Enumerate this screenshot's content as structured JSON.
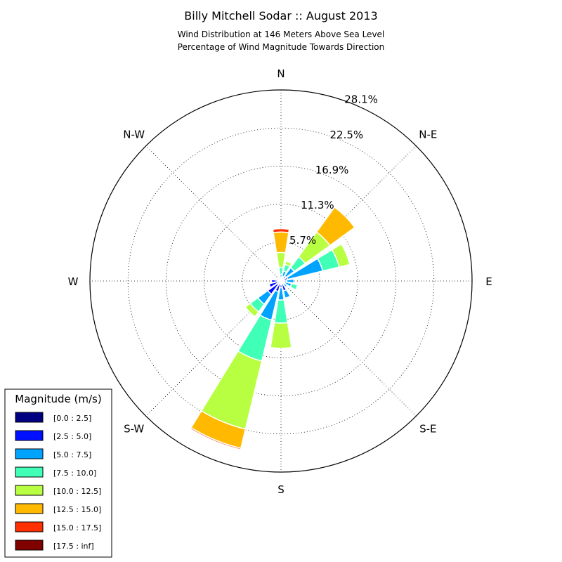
{
  "chart_data": {
    "type": "windrose",
    "title": "Billy Mitchell Sodar :: August 2013",
    "subtitle_lines": [
      "Wind Distribution at 146 Meters Above Sea Level",
      "Percentage of Wind Magnitude Towards Direction"
    ],
    "directions": [
      "N",
      "N-E",
      "E",
      "S-E",
      "S",
      "S-W",
      "W",
      "N-W"
    ],
    "radial_max": 28.1,
    "radial_ticks": [
      "5.7%",
      "11.3%",
      "16.9%",
      "22.5%",
      "28.1%"
    ],
    "radial_tick_values": [
      5.7,
      11.3,
      16.9,
      22.5,
      28.1
    ],
    "legend_title": "Magnitude (m/s)",
    "bins": [
      {
        "label": "[0.0 : 2.5]",
        "color": "#000080"
      },
      {
        "label": "[2.5 : 5.0]",
        "color": "#0010ff"
      },
      {
        "label": "[5.0 : 7.5]",
        "color": "#00a4ff"
      },
      {
        "label": "[7.5 : 10.0]",
        "color": "#40ffb7"
      },
      {
        "label": "[10.0 : 12.5]",
        "color": "#b7ff40"
      },
      {
        "label": "[12.5 : 15.0]",
        "color": "#ffb900"
      },
      {
        "label": "[15.0 : 17.5]",
        "color": "#ff3000"
      },
      {
        "label": "[17.5 : inf]",
        "color": "#800000"
      }
    ],
    "sectors": [
      {
        "direction_deg": 0,
        "values": [
          0.1,
          0.3,
          0.6,
          1.0,
          2.2,
          3.0,
          0.5,
          0.0
        ]
      },
      {
        "direction_deg": 22.5,
        "values": [
          0.2,
          0.5,
          0.8,
          1.0,
          0.5,
          0.0,
          0.0,
          0.0
        ]
      },
      {
        "direction_deg": 45,
        "values": [
          0.3,
          0.6,
          1.5,
          2.0,
          4.5,
          4.5,
          0.0,
          0.0
        ]
      },
      {
        "direction_deg": 67.5,
        "values": [
          0.3,
          0.7,
          5.3,
          2.5,
          1.6,
          0.0,
          0.0,
          0.0
        ]
      },
      {
        "direction_deg": 90,
        "values": [
          0.2,
          0.6,
          1.1,
          0.0,
          0.0,
          0.0,
          0.0,
          0.0
        ]
      },
      {
        "direction_deg": 112.5,
        "values": [
          0.1,
          0.5,
          1.0,
          0.9,
          0.0,
          0.0,
          0.0,
          0.0
        ]
      },
      {
        "direction_deg": 135,
        "values": [
          0.1,
          0.3,
          0.7,
          0.0,
          0.0,
          0.0,
          0.0,
          0.0
        ]
      },
      {
        "direction_deg": 157.5,
        "values": [
          0.2,
          1.3,
          1.1,
          0.0,
          0.0,
          0.0,
          0.0,
          0.0
        ]
      },
      {
        "direction_deg": 180,
        "values": [
          0.2,
          0.8,
          1.8,
          3.4,
          3.7,
          0.0,
          0.0,
          0.0
        ]
      },
      {
        "direction_deg": 202.5,
        "values": [
          0.2,
          1.4,
          4.3,
          6.2,
          10.3,
          2.9,
          0.2,
          0.0
        ]
      },
      {
        "direction_deg": 225,
        "values": [
          0.3,
          2.1,
          1.8,
          1.4,
          0.9,
          0.0,
          0.0,
          0.0
        ]
      },
      {
        "direction_deg": 247.5,
        "values": [
          0.2,
          1.6,
          0.0,
          0.0,
          0.0,
          0.0,
          0.0,
          0.0
        ]
      },
      {
        "direction_deg": 270,
        "values": [
          0.2,
          1.2,
          0.0,
          0.0,
          0.0,
          0.0,
          0.0,
          0.0
        ]
      },
      {
        "direction_deg": 292.5,
        "values": [
          0.2,
          0.5,
          0.0,
          0.0,
          0.0,
          0.0,
          0.0,
          0.0
        ]
      },
      {
        "direction_deg": 315,
        "values": [
          0.2,
          0.3,
          0.0,
          0.0,
          0.0,
          0.0,
          0.0,
          0.0
        ]
      },
      {
        "direction_deg": 337.5,
        "values": [
          0.1,
          0.2,
          0.0,
          0.0,
          0.0,
          0.0,
          0.0,
          0.0
        ]
      }
    ],
    "grid": true,
    "legend_position": "bottom-left"
  }
}
